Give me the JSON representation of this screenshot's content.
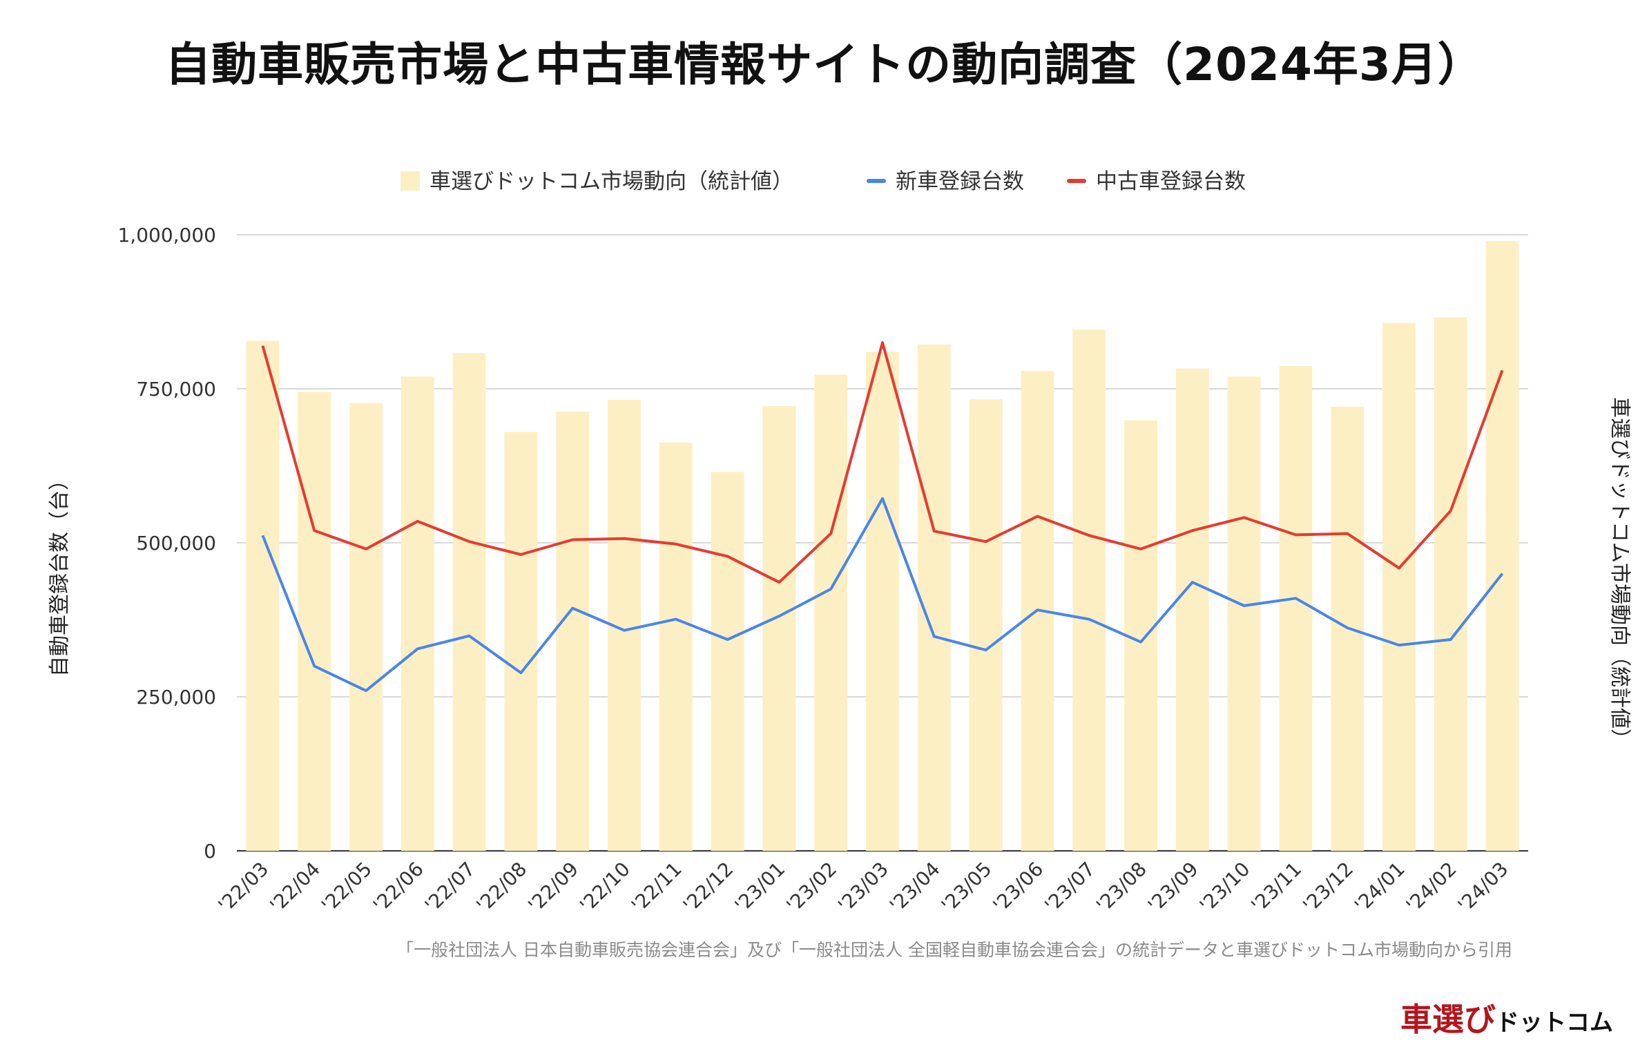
{
  "title": "自動車販売市場と中古車情報サイトの動向調査（2024年3月）",
  "source_note": "「一般社団法人 日本自動車販売協会連合会」及び「一般社団法人 全国軽自動車協会連合会」の統計データと車選びドットコム市場動向から引用",
  "logo": {
    "main": "車選び",
    "sub": "ドットコム"
  },
  "colors": {
    "bars": "#fdefc4",
    "new_cars": "#4a86e8",
    "used_cars": "#e53b31",
    "grid": "#d9d9d9",
    "baseline": "#333333"
  },
  "chart_data": {
    "type": "bar",
    "title": "自動車販売市場と中古車情報サイトの動向調査（2024年3月）",
    "categories": [
      "'22/03",
      "'22/04",
      "'22/05",
      "'22/06",
      "'22/07",
      "'22/08",
      "'22/09",
      "'22/10",
      "'22/11",
      "'22/12",
      "'23/01",
      "'23/02",
      "'23/03",
      "'23/04",
      "'23/05",
      "'23/06",
      "'23/07",
      "'23/08",
      "'23/09",
      "'23/10",
      "'23/11",
      "'23/12",
      "'24/01",
      "'24/02",
      "'24/03"
    ],
    "ylabel": "自動車登録台数（台）",
    "y2label": "車選びドットコム市場動向（統計値）",
    "ylim": [
      0,
      1000000
    ],
    "yticks": [
      0,
      250000,
      500000,
      750000,
      1000000
    ],
    "ytick_labels": [
      "0",
      "250,000",
      "500,000",
      "750,000",
      "1,000,000"
    ],
    "grid": true,
    "legend_position": "top",
    "series": [
      {
        "name": "車選びドットコム市場動向（統計値）",
        "type": "bar",
        "axis": "right",
        "values": [
          828000,
          745000,
          727000,
          770000,
          808000,
          680000,
          713000,
          732000,
          663000,
          615000,
          722000,
          773000,
          810000,
          822000,
          733000,
          779000,
          846000,
          699000,
          783000,
          770000,
          787000,
          721000,
          857000,
          866000,
          990000
        ]
      },
      {
        "name": "新車登録台数",
        "type": "line",
        "axis": "left",
        "values": [
          512000,
          300000,
          260000,
          328000,
          349000,
          289000,
          394000,
          358000,
          376000,
          343000,
          381000,
          425000,
          572000,
          348000,
          326000,
          391000,
          376000,
          339000,
          436000,
          398000,
          410000,
          362000,
          334000,
          343000,
          450000
        ]
      },
      {
        "name": "中古車登録台数",
        "type": "line",
        "axis": "left",
        "values": [
          820000,
          520000,
          490000,
          535000,
          502000,
          481000,
          505000,
          507000,
          498000,
          478000,
          436000,
          515000,
          825000,
          519000,
          502000,
          543000,
          512000,
          490000,
          520000,
          541000,
          513000,
          515000,
          459000,
          552000,
          780000
        ]
      }
    ]
  }
}
